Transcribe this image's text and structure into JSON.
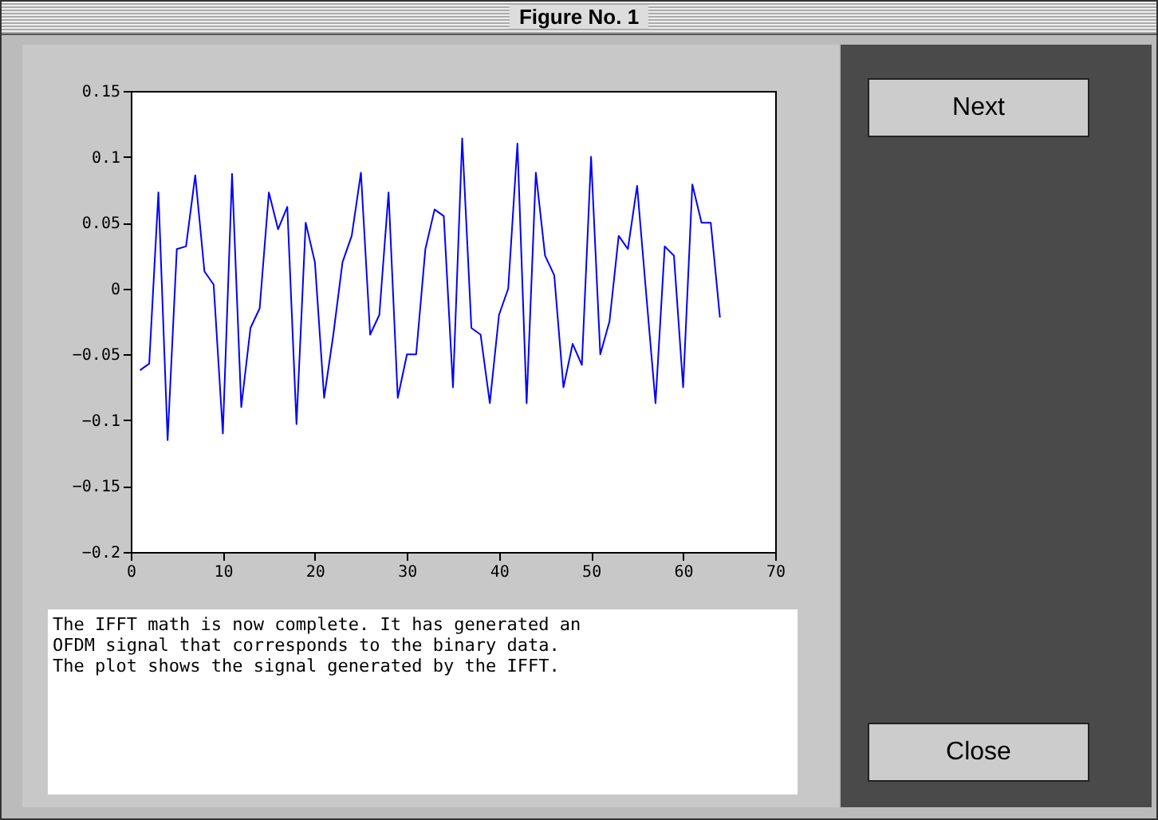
{
  "chart_data": {
    "type": "line",
    "title": "Figure No. 1",
    "x": [
      1,
      2,
      3,
      4,
      5,
      6,
      7,
      8,
      9,
      10,
      11,
      12,
      13,
      14,
      15,
      16,
      17,
      18,
      19,
      20,
      21,
      22,
      23,
      24,
      25,
      26,
      27,
      28,
      29,
      30,
      31,
      32,
      33,
      34,
      35,
      36,
      37,
      38,
      39,
      40,
      41,
      42,
      43,
      44,
      45,
      46,
      47,
      48,
      49,
      50,
      51,
      52,
      53,
      54,
      55,
      56,
      57,
      58,
      59,
      60,
      61,
      62,
      63,
      64
    ],
    "series": [
      {
        "color": "#0000ff",
        "values": [
          -0.062,
          -0.057,
          0.073,
          -0.115,
          0.03,
          0.032,
          0.086,
          0.013,
          0.003,
          -0.11,
          0.087,
          -0.09,
          -0.03,
          -0.015,
          0.073,
          0.045,
          0.062,
          -0.103,
          0.05,
          0.02,
          -0.083,
          -0.035,
          0.02,
          0.04,
          0.088,
          -0.035,
          -0.02,
          0.073,
          -0.083,
          -0.05,
          -0.05,
          0.03,
          0.06,
          0.055,
          -0.075,
          0.114,
          -0.03,
          -0.035,
          -0.087,
          -0.02,
          0.0,
          0.11,
          -0.087,
          0.088,
          0.025,
          0.01,
          -0.075,
          -0.042,
          -0.058,
          0.1,
          -0.05,
          -0.025,
          0.04,
          0.03,
          0.078,
          -0.005,
          -0.087,
          0.032,
          0.025,
          -0.075,
          0.079,
          0.05,
          0.05,
          -0.022
        ]
      }
    ],
    "xlim": [
      0,
      70
    ],
    "xticks": [
      0,
      10,
      20,
      30,
      40,
      50,
      60,
      70
    ],
    "ylim": [
      -0.2,
      0.15
    ],
    "yticks": [
      -0.2,
      -0.15,
      -0.1,
      -0.05,
      0,
      0.05,
      0.1,
      0.15
    ],
    "grid": false,
    "marker": "none",
    "line_style": "solid",
    "annotations": [
      "The IFFT math is now complete. It has generated an\nOFDM signal that corresponds to the binary data.\nThe plot shows the signal generated by the IFFT.",
      "Next",
      "Close"
    ]
  }
}
